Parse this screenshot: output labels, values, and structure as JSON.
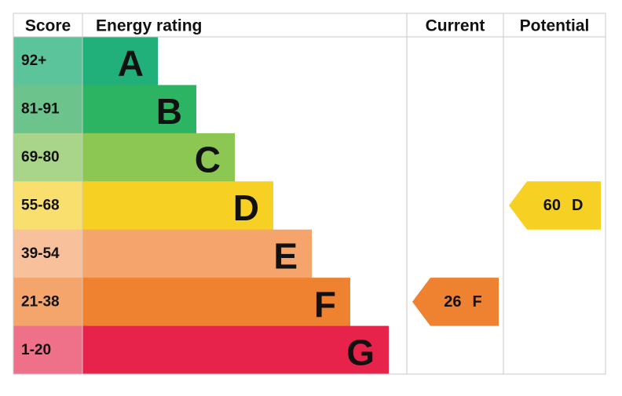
{
  "chart_data": {
    "type": "epc",
    "headers": [
      "Score",
      "Energy rating",
      "Current",
      "Potential"
    ],
    "bands": [
      {
        "score": "92+",
        "letter": "A",
        "color": "#22b07a",
        "score_color": "#5cc49b"
      },
      {
        "score": "81-91",
        "letter": "B",
        "color": "#2cb463",
        "score_color": "#6cc48c"
      },
      {
        "score": "69-80",
        "letter": "C",
        "color": "#8cc653",
        "score_color": "#a9d58a"
      },
      {
        "score": "55-68",
        "letter": "D",
        "color": "#f7d024",
        "score_color": "#f9df6e"
      },
      {
        "score": "39-54",
        "letter": "E",
        "color": "#f5a46b",
        "score_color": "#f8c19b"
      },
      {
        "score": "21-38",
        "letter": "F",
        "color": "#ef8231",
        "score_color": "#f4a56b"
      },
      {
        "score": "1-20",
        "letter": "G",
        "color": "#e8234b",
        "score_color": "#ef7089"
      }
    ],
    "current": {
      "value": 26,
      "band": "F",
      "color": "#ef8231"
    },
    "potential": {
      "value": 60,
      "band": "D",
      "color": "#f7d024"
    }
  }
}
